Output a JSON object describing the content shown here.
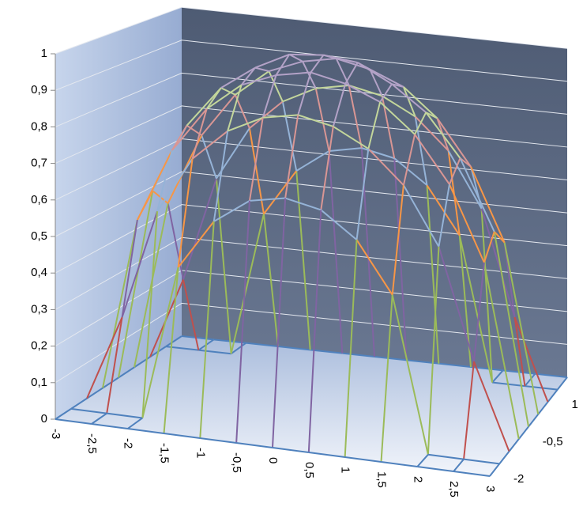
{
  "chart_data": {
    "type": "surface-wireframe",
    "categories": [
      "-3",
      "-2,5",
      "-2",
      "-1,5",
      "-1",
      "-0,5",
      "0",
      "0,5",
      "1",
      "1,5",
      "2",
      "2,5",
      "3"
    ],
    "series": [
      {
        "name": "-2",
        "values": [
          0,
          0,
          0,
          0,
          0,
          0,
          0,
          0,
          0,
          0,
          0,
          0,
          0
        ]
      },
      {
        "name": null,
        "values": [
          0,
          0,
          0,
          0.43,
          0.57,
          0.64,
          0.66,
          0.64,
          0.57,
          0.43,
          0,
          0,
          0
        ]
      },
      {
        "name": null,
        "values": [
          0,
          0.24,
          0.55,
          0.71,
          0.8,
          0.85,
          0.87,
          0.85,
          0.8,
          0.71,
          0.55,
          0.24,
          0
        ]
      },
      {
        "name": "-0,5",
        "values": [
          0,
          0.49,
          0.7,
          0.83,
          0.91,
          0.95,
          0.97,
          0.95,
          0.91,
          0.83,
          0.7,
          0.49,
          0
        ]
      },
      {
        "name": null,
        "values": [
          0,
          0.55,
          0.75,
          0.87,
          0.94,
          0.99,
          1,
          0.99,
          0.94,
          0.87,
          0.75,
          0.55,
          0
        ]
      },
      {
        "name": null,
        "values": [
          0,
          0.49,
          0.7,
          0.83,
          0.91,
          0.95,
          0.97,
          0.95,
          0.91,
          0.83,
          0.7,
          0.49,
          0
        ]
      },
      {
        "name": "1",
        "values": [
          0,
          0.24,
          0.55,
          0.71,
          0.8,
          0.85,
          0.87,
          0.85,
          0.8,
          0.71,
          0.55,
          0.24,
          0
        ]
      },
      {
        "name": null,
        "values": [
          0,
          0,
          0,
          0.43,
          0.57,
          0.64,
          0.66,
          0.64,
          0.57,
          0.43,
          0,
          0,
          0
        ]
      },
      {
        "name": null,
        "values": [
          0,
          0,
          0,
          0,
          0,
          0,
          0,
          0,
          0,
          0,
          0,
          0,
          0
        ]
      }
    ],
    "zlim": [
      0,
      1
    ],
    "zticks": [
      0,
      {
        "value": 0.1,
        "label": "0,1"
      },
      {
        "value": 0.2,
        "label": "0,2"
      },
      {
        "value": 0.3,
        "label": "0,3"
      },
      {
        "value": 0.4,
        "label": "0,4"
      },
      {
        "value": 0.5,
        "label": "0,5"
      },
      {
        "value": 0.6,
        "label": "0,6"
      },
      {
        "value": 0.7,
        "label": "0,7"
      },
      {
        "value": 0.8,
        "label": "0,8"
      },
      {
        "value": 0.9,
        "label": "0,9"
      },
      1
    ],
    "band_colors": [
      "#4f81bd",
      "#c0504d",
      "#9bbb59",
      "#8064a2",
      "#4bacc6",
      "#f79646",
      "#95b3d7",
      "#d99694",
      "#c3d69b",
      "#b3a2c7"
    ],
    "grid": true
  }
}
